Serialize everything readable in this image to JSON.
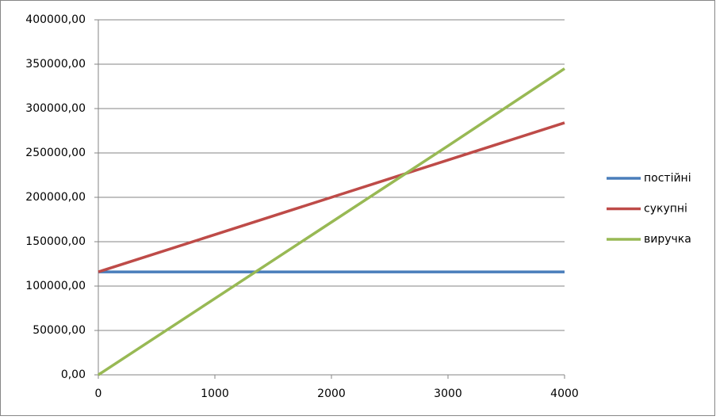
{
  "chart_data": {
    "type": "line",
    "x": [
      0,
      1000,
      2000,
      3000,
      4000
    ],
    "series": [
      {
        "name": "постійні",
        "color": "#4a7ebb",
        "values": [
          116000,
          116000,
          116000,
          116000,
          116000
        ]
      },
      {
        "name": "сукупні",
        "color": "#be4b48",
        "values": [
          116000,
          158000,
          200000,
          242000,
          284000
        ]
      },
      {
        "name": "виручка",
        "color": "#98b954",
        "values": [
          0,
          86000,
          172000,
          258000,
          345000
        ]
      }
    ],
    "xlim": [
      0,
      4000
    ],
    "xticks": [
      0,
      1000,
      2000,
      3000,
      4000
    ],
    "ylim": [
      0,
      400000
    ],
    "yticks": [
      {
        "value": 0,
        "label": "0,00"
      },
      {
        "value": 50000,
        "label": "50000,00"
      },
      {
        "value": 100000,
        "label": "100000,00"
      },
      {
        "value": 150000,
        "label": "150000,00"
      },
      {
        "value": 200000,
        "label": "200000,00"
      },
      {
        "value": 250000,
        "label": "250000,00"
      },
      {
        "value": 300000,
        "label": "300000,00"
      },
      {
        "value": 350000,
        "label": "350000,00"
      },
      {
        "value": 400000,
        "label": "400000,00"
      }
    ],
    "grid": true,
    "legend": "right"
  }
}
